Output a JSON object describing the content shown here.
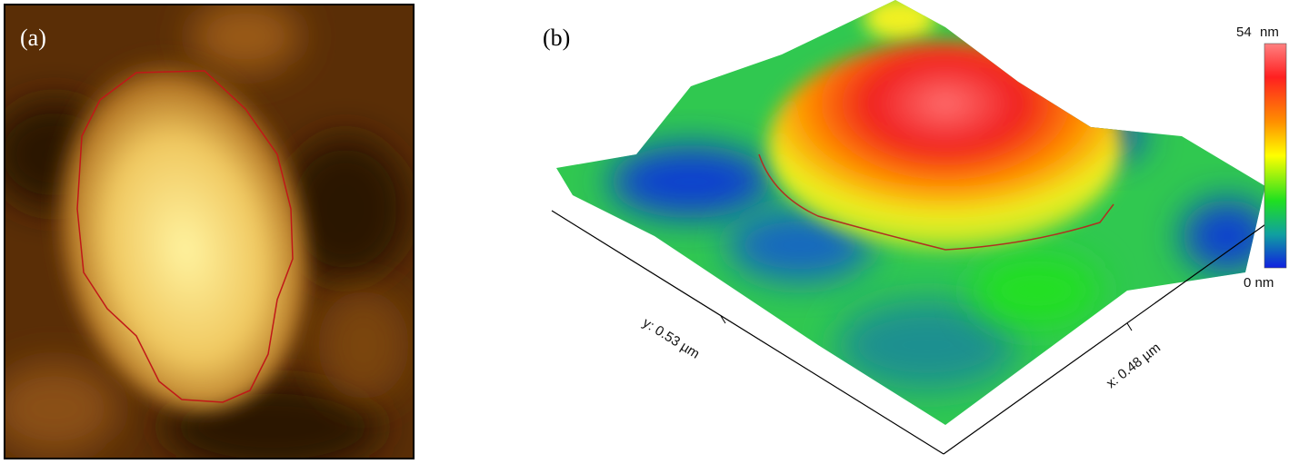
{
  "panels": [
    {
      "label": "(a)"
    },
    {
      "label": "(b)",
      "colorbar": {
        "max": 54,
        "max_unit": "nm",
        "min": "0 nm"
      },
      "axes": {
        "y_label": "y: 0.53 µm",
        "x_label": "x: 0.48 µm"
      }
    }
  ]
}
